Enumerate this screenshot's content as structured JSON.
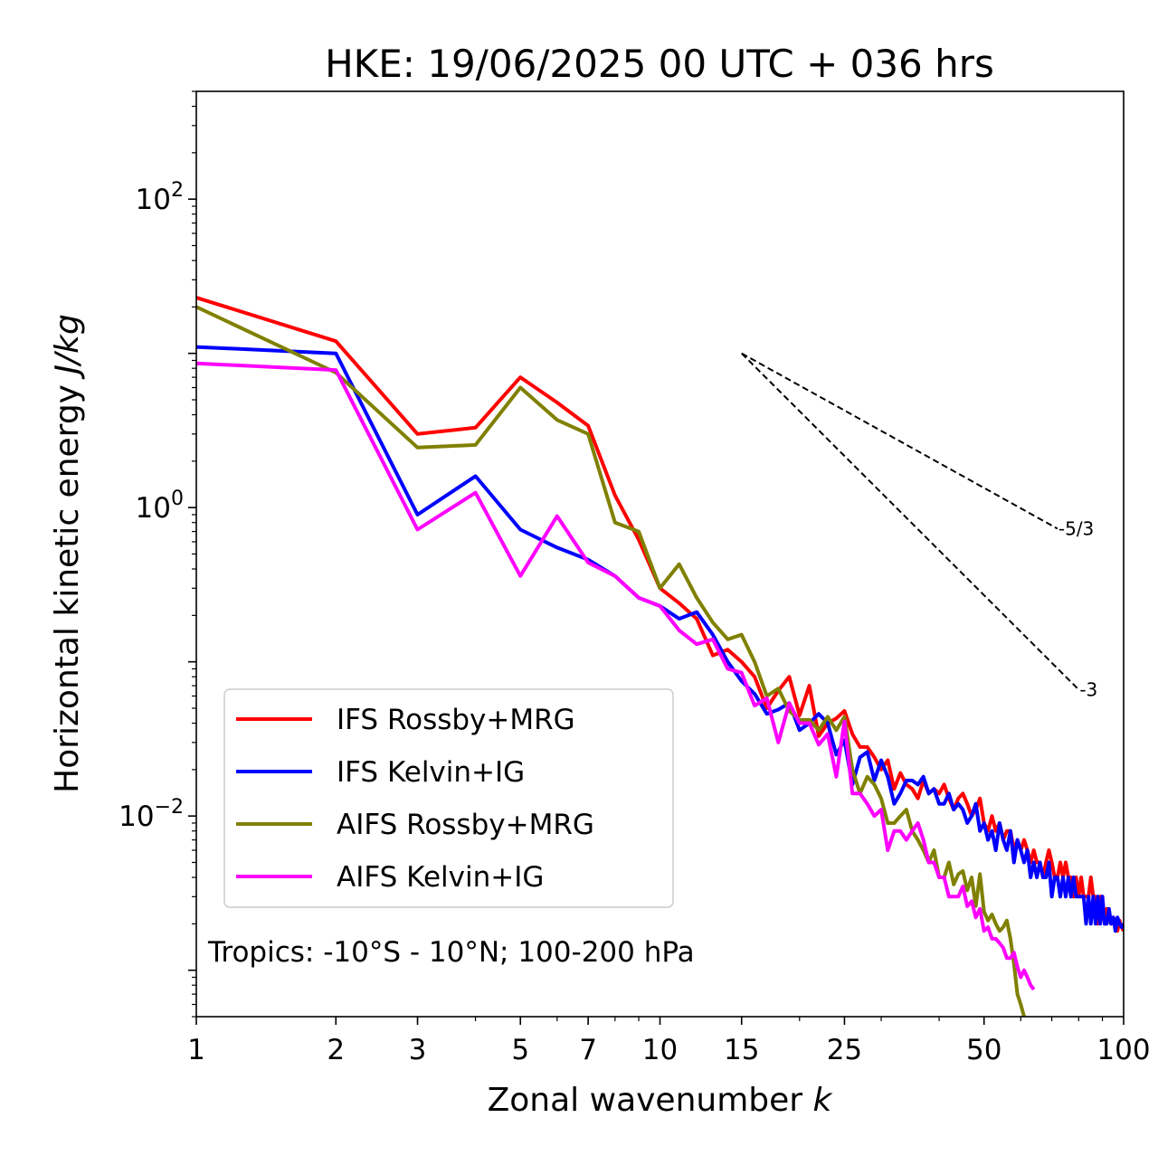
{
  "title": "HKE: 19/06/2025 00 UTC + 036 hrs",
  "chart_data": {
    "type": "line",
    "title": "HKE: 19/06/2025 00 UTC + 036 hrs",
    "xlabel_text": "Zonal wavenumber ",
    "xlabel_italic": "k",
    "ylabel_text": "Horizontal kinetic energy ",
    "ylabel_italic": "J/kg",
    "xscale": "log",
    "yscale": "log",
    "xlim": [
      1,
      100
    ],
    "ylim": [
      0.0005,
      500
    ],
    "x_ticks": [
      {
        "value": 1,
        "label": "1"
      },
      {
        "value": 2,
        "label": "2"
      },
      {
        "value": 3,
        "label": "3"
      },
      {
        "value": 5,
        "label": "5"
      },
      {
        "value": 7,
        "label": "7"
      },
      {
        "value": 10,
        "label": "10"
      },
      {
        "value": 15,
        "label": "15"
      },
      {
        "value": 25,
        "label": "25"
      },
      {
        "value": 50,
        "label": "50"
      },
      {
        "value": 100,
        "label": "100"
      }
    ],
    "y_ticks": [
      {
        "value": 100,
        "base": "10",
        "exp": "2"
      },
      {
        "value": 1,
        "base": "10",
        "exp": "0"
      },
      {
        "value": 0.01,
        "base": "10",
        "exp": "−2"
      }
    ],
    "grid": false,
    "legend_position": "lower-left",
    "annotation": "Tropics: -10°S - 10°N; 100-200 hPa",
    "series": [
      {
        "name": "IFS Rossby+MRG",
        "color": "#ff0000",
        "x": [
          1,
          2,
          3,
          4,
          5,
          6,
          7,
          8,
          9,
          10,
          11,
          12,
          13,
          14,
          15,
          16,
          17,
          18,
          19,
          20,
          21,
          22,
          23,
          24,
          25,
          26,
          27,
          28,
          29,
          30,
          31,
          32,
          33,
          34,
          35,
          36,
          37,
          38,
          39,
          40,
          41,
          42,
          43,
          44,
          45,
          46,
          47,
          48,
          49,
          50,
          51,
          52,
          53,
          54,
          55,
          56,
          57,
          58,
          59,
          60,
          61,
          62,
          63,
          64,
          65,
          66,
          67,
          68,
          69,
          70,
          71,
          72,
          73,
          74,
          75,
          76,
          77,
          78,
          79,
          80,
          81,
          82,
          83,
          84,
          85,
          86,
          87,
          88,
          89,
          90,
          91,
          92,
          93,
          94,
          95,
          96,
          97,
          98,
          99,
          100
        ],
        "y": [
          23,
          12,
          3.0,
          3.3,
          7.0,
          4.8,
          3.4,
          1.2,
          0.62,
          0.3,
          0.24,
          0.19,
          0.11,
          0.12,
          0.1,
          0.08,
          0.05,
          0.065,
          0.08,
          0.045,
          0.07,
          0.033,
          0.04,
          0.043,
          0.048,
          0.034,
          0.028,
          0.028,
          0.024,
          0.02,
          0.023,
          0.015,
          0.019,
          0.016,
          0.015,
          0.013,
          0.017,
          0.014,
          0.015,
          0.014,
          0.016,
          0.013,
          0.011,
          0.013,
          0.014,
          0.012,
          0.01,
          0.011,
          0.013,
          0.009,
          0.008,
          0.01,
          0.008,
          0.009,
          0.007,
          0.008,
          0.008,
          0.006,
          0.007,
          0.006,
          0.007,
          0.006,
          0.005,
          0.006,
          0.005,
          0.005,
          0.004,
          0.005,
          0.006,
          0.005,
          0.004,
          0.004,
          0.005,
          0.004,
          0.005,
          0.004,
          0.004,
          0.003,
          0.004,
          0.003,
          0.004,
          0.003,
          0.003,
          0.003,
          0.004,
          0.003,
          0.003,
          0.002,
          0.003,
          0.003,
          0.002,
          0.0025,
          0.0022,
          0.002,
          0.0022,
          0.002,
          0.0018,
          0.0021,
          0.0019,
          0.0018
        ]
      },
      {
        "name": "IFS Kelvin+IG",
        "color": "#0000ff",
        "x": [
          1,
          2,
          3,
          4,
          5,
          6,
          7,
          8,
          9,
          10,
          11,
          12,
          13,
          14,
          15,
          16,
          17,
          18,
          19,
          20,
          21,
          22,
          23,
          24,
          25,
          26,
          27,
          28,
          29,
          30,
          31,
          32,
          33,
          34,
          35,
          36,
          37,
          38,
          39,
          40,
          41,
          42,
          43,
          44,
          45,
          46,
          47,
          48,
          49,
          50,
          51,
          52,
          53,
          54,
          55,
          56,
          57,
          58,
          59,
          60,
          61,
          62,
          63,
          64,
          65,
          66,
          67,
          68,
          69,
          70,
          71,
          72,
          73,
          74,
          75,
          76,
          77,
          78,
          79,
          80,
          81,
          82,
          83,
          84,
          85,
          86,
          87,
          88,
          89,
          90,
          91,
          92,
          93,
          94,
          95,
          96,
          97,
          98,
          99,
          100
        ],
        "y": [
          11,
          10,
          0.9,
          1.6,
          0.72,
          0.55,
          0.46,
          0.36,
          0.26,
          0.23,
          0.19,
          0.21,
          0.15,
          0.1,
          0.075,
          0.062,
          0.046,
          0.049,
          0.054,
          0.036,
          0.04,
          0.046,
          0.04,
          0.025,
          0.031,
          0.016,
          0.024,
          0.026,
          0.017,
          0.023,
          0.018,
          0.012,
          0.014,
          0.017,
          0.017,
          0.016,
          0.018,
          0.014,
          0.015,
          0.012,
          0.012,
          0.014,
          0.011,
          0.012,
          0.011,
          0.009,
          0.01,
          0.012,
          0.008,
          0.009,
          0.007,
          0.008,
          0.006,
          0.009,
          0.007,
          0.006,
          0.008,
          0.005,
          0.007,
          0.006,
          0.005,
          0.006,
          0.004,
          0.005,
          0.004,
          0.005,
          0.004,
          0.004,
          0.005,
          0.003,
          0.004,
          0.004,
          0.003,
          0.004,
          0.003,
          0.004,
          0.003,
          0.004,
          0.003,
          0.003,
          0.003,
          0.003,
          0.002,
          0.003,
          0.002,
          0.003,
          0.002,
          0.003,
          0.002,
          0.003,
          0.002,
          0.002,
          0.0025,
          0.002,
          0.0022,
          0.0018,
          0.0022,
          0.002,
          0.0019,
          0.002
        ]
      },
      {
        "name": "AIFS Rossby+MRG",
        "color": "#808000",
        "x": [
          1,
          2,
          3,
          4,
          5,
          6,
          7,
          8,
          9,
          10,
          11,
          12,
          13,
          14,
          15,
          16,
          17,
          18,
          19,
          20,
          21,
          22,
          23,
          24,
          25,
          26,
          27,
          28,
          29,
          30,
          31,
          32,
          33,
          34,
          35,
          36,
          37,
          38,
          39,
          40,
          41,
          42,
          43,
          44,
          45,
          46,
          47,
          48,
          49,
          50,
          51,
          52,
          53,
          54,
          55,
          56,
          57,
          58,
          59,
          60,
          61,
          62,
          63,
          64
        ],
        "y": [
          20,
          7.5,
          2.45,
          2.55,
          6.0,
          3.7,
          3.0,
          0.8,
          0.7,
          0.3,
          0.43,
          0.26,
          0.18,
          0.14,
          0.15,
          0.1,
          0.06,
          0.067,
          0.048,
          0.042,
          0.042,
          0.036,
          0.044,
          0.036,
          0.044,
          0.02,
          0.014,
          0.018,
          0.016,
          0.013,
          0.009,
          0.009,
          0.01,
          0.011,
          0.008,
          0.007,
          0.006,
          0.005,
          0.006,
          0.004,
          0.004,
          0.005,
          0.0036,
          0.0042,
          0.0044,
          0.0033,
          0.004,
          0.0026,
          0.0042,
          0.0024,
          0.0021,
          0.0023,
          0.002,
          0.0018,
          0.0019,
          0.0021,
          0.0016,
          0.0011,
          0.0007,
          0.0006,
          0.0005,
          0.00045,
          0.0004,
          0.00035
        ]
      },
      {
        "name": "AIFS Kelvin+IG",
        "color": "#ff00ff",
        "x": [
          1,
          2,
          3,
          4,
          5,
          6,
          7,
          8,
          9,
          10,
          11,
          12,
          13,
          14,
          15,
          16,
          17,
          18,
          19,
          20,
          21,
          22,
          23,
          24,
          25,
          26,
          27,
          28,
          29,
          30,
          31,
          32,
          33,
          34,
          35,
          36,
          37,
          38,
          39,
          40,
          41,
          42,
          43,
          44,
          45,
          46,
          47,
          48,
          49,
          50,
          51,
          52,
          53,
          54,
          55,
          56,
          57,
          58,
          59,
          60,
          61,
          62,
          63,
          64
        ],
        "y": [
          8.6,
          7.8,
          0.72,
          1.25,
          0.36,
          0.88,
          0.44,
          0.36,
          0.26,
          0.23,
          0.16,
          0.13,
          0.14,
          0.09,
          0.085,
          0.052,
          0.058,
          0.03,
          0.054,
          0.04,
          0.04,
          0.029,
          0.034,
          0.018,
          0.041,
          0.014,
          0.014,
          0.012,
          0.01,
          0.011,
          0.006,
          0.008,
          0.008,
          0.007,
          0.008,
          0.009,
          0.007,
          0.005,
          0.005,
          0.004,
          0.004,
          0.003,
          0.003,
          0.003,
          0.0035,
          0.0026,
          0.0028,
          0.0022,
          0.0025,
          0.0018,
          0.0019,
          0.0016,
          0.0016,
          0.0015,
          0.0014,
          0.0012,
          0.0012,
          0.0013,
          0.00105,
          0.0009,
          0.001,
          0.0009,
          0.0008,
          0.00075
        ]
      }
    ],
    "reference_lines": [
      {
        "label": "-5/3",
        "x": [
          15,
          72
        ],
        "y": [
          10,
          0.73
        ],
        "color": "#000000",
        "style": "dashed"
      },
      {
        "label": "-3",
        "x": [
          15,
          80
        ],
        "y": [
          10,
          0.066
        ],
        "color": "#000000",
        "style": "dashed"
      }
    ]
  }
}
